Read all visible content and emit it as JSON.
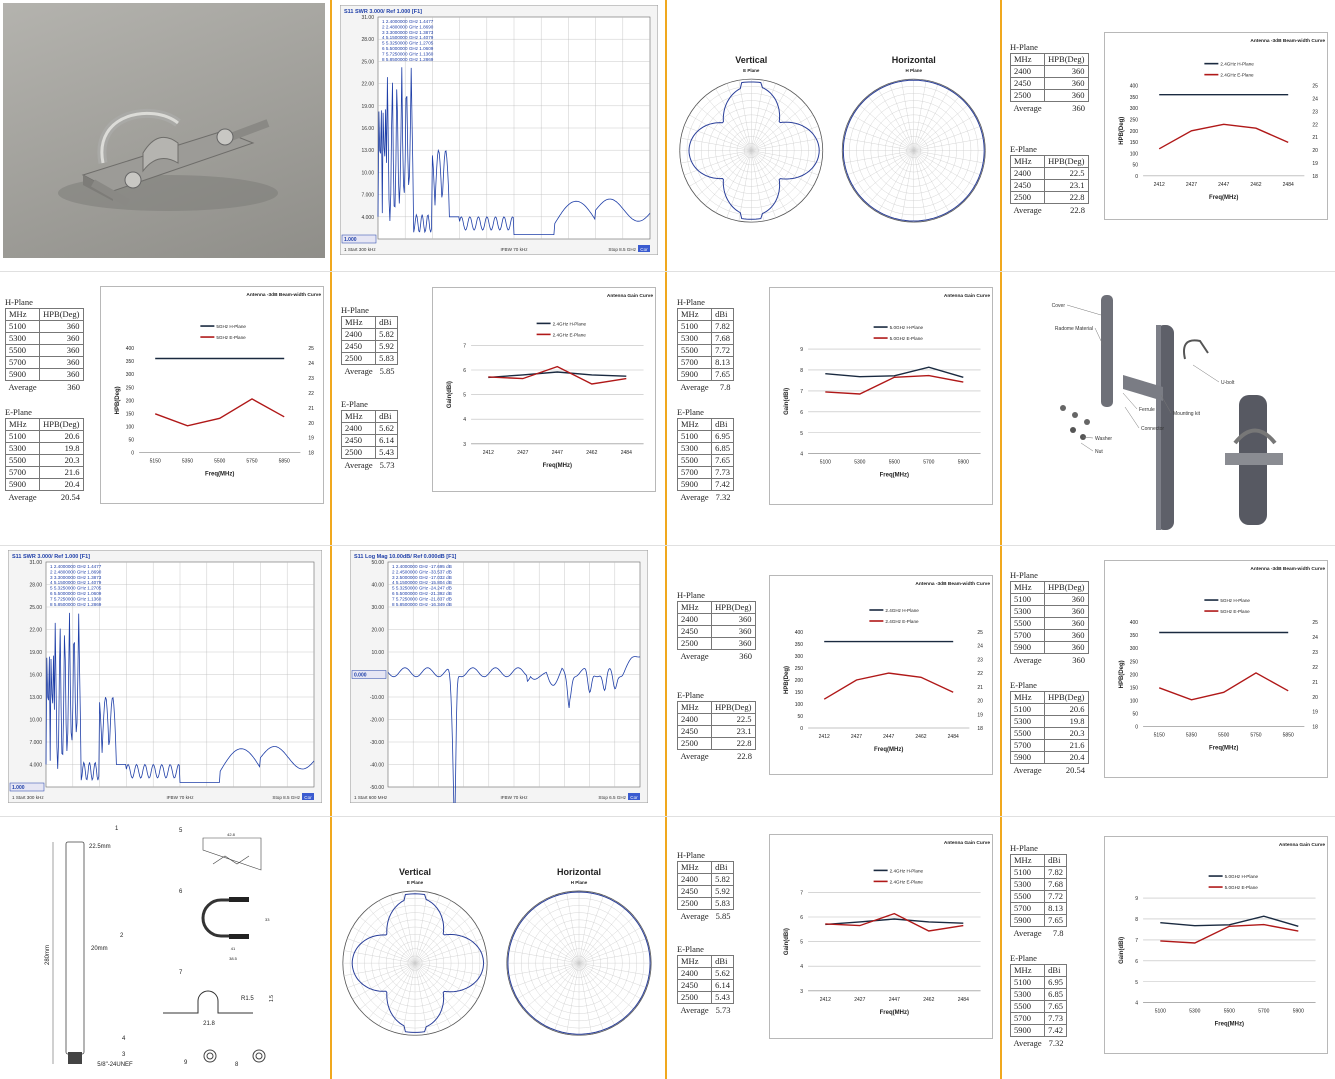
{
  "texts": {
    "vertical": "Vertical",
    "horizontal": "Horizontal",
    "eplane": "E Plane",
    "hplane": "H Plane",
    "vswr_header": "S11 SWR 3.000/ Ref 1.000 [F1]",
    "logmag_header": "S11 Log Mag 10.00dB/ Ref 0.000dB [F1]",
    "vswr_start": "1 Start 300 kHz",
    "vswr_ifbw": "IFBW 70 kHz",
    "vswr_stop": "Stop 8.5 GHz",
    "logmag_start": "1 Start 600 MHz",
    "logmag_ifbw": "IFBW 70 kHz",
    "logmag_stop": "Stop 6.5 GHz",
    "cor": "Cor",
    "vswr_ref": "1.000",
    "logmag_ref": "0.000"
  },
  "colors": {
    "separator": "#f0a81e",
    "h_plane": "#1a2a40",
    "e_plane": "#b01818",
    "trace": "#1f3fa8"
  },
  "vswr": {
    "y_ticks": [
      "31.00",
      "28.00",
      "25.00",
      "22.00",
      "19.00",
      "16.00",
      "13.00",
      "10.00",
      "7.000",
      "4.000",
      "1.000"
    ],
    "markers": [
      "1  2.4000000 GHz  1.4477",
      "2  2.4800000 GHz  1.8690",
      "3  3.3000000 GHz  1.3873",
      "4  5.1500000 GHz  1.4079",
      "5  5.3250000 GHz  1.2705",
      "6  5.5000000 GHz  1.0609",
      "7  5.7250000 GHz  1.1360",
      "8  5.8500000 GHz  1.2869"
    ]
  },
  "logmag": {
    "y_ticks": [
      "50.00",
      "40.00",
      "30.00",
      "20.00",
      "10.00",
      "0.000",
      "-10.00",
      "-20.00",
      "-30.00",
      "-40.00",
      "-50.00"
    ],
    "markers": [
      "1  2.4000000 GHz  -17.695 dB",
      "2  2.4500000 GHz  -33.537 dB",
      "3  2.5000000 GHz  -17.032 dB",
      "4  5.1500000 GHz  -15.804 dB",
      "5  5.3250000 GHz  -24.247 dB",
      "6  5.5000000 GHz  -21.392 dB",
      "7  5.7250000 GHz  -21.837 dB",
      "8  5.8500000 GHz  -16.349 dB"
    ]
  },
  "tables": {
    "bw24": {
      "h_title": "H-Plane",
      "e_title": "E-Plane",
      "col1": "MHz",
      "col2": "HPB(Deg)",
      "h_rows": [
        [
          "2400",
          "360"
        ],
        [
          "2450",
          "360"
        ],
        [
          "2500",
          "360"
        ]
      ],
      "h_avg": [
        "Average",
        "360"
      ],
      "e_rows": [
        [
          "2400",
          "22.5"
        ],
        [
          "2450",
          "23.1"
        ],
        [
          "2500",
          "22.8"
        ]
      ],
      "e_avg": [
        "Average",
        "22.8"
      ]
    },
    "bw5": {
      "h_title": "H-Plane",
      "e_title": "E-Plane",
      "col1": "MHz",
      "col2": "HPB(Deg)",
      "h_rows": [
        [
          "5100",
          "360"
        ],
        [
          "5300",
          "360"
        ],
        [
          "5500",
          "360"
        ],
        [
          "5700",
          "360"
        ],
        [
          "5900",
          "360"
        ]
      ],
      "h_avg": [
        "Average",
        "360"
      ],
      "e_rows": [
        [
          "5100",
          "20.6"
        ],
        [
          "5300",
          "19.8"
        ],
        [
          "5500",
          "20.3"
        ],
        [
          "5700",
          "21.6"
        ],
        [
          "5900",
          "20.4"
        ]
      ],
      "e_avg": [
        "Average",
        "20.54"
      ]
    },
    "gain24": {
      "h_title": "H-Plane",
      "e_title": "E-Plane",
      "col1": "MHz",
      "col2": "dBi",
      "h_rows": [
        [
          "2400",
          "5.82"
        ],
        [
          "2450",
          "5.92"
        ],
        [
          "2500",
          "5.83"
        ]
      ],
      "h_avg": [
        "Average",
        "5.85"
      ],
      "e_rows": [
        [
          "2400",
          "5.62"
        ],
        [
          "2450",
          "6.14"
        ],
        [
          "2500",
          "5.43"
        ]
      ],
      "e_avg": [
        "Average",
        "5.73"
      ]
    },
    "gain5": {
      "h_title": "H-Plane",
      "e_title": "E-Plane",
      "col1": "MHz",
      "col2": "dBi",
      "h_rows": [
        [
          "5100",
          "7.82"
        ],
        [
          "5300",
          "7.68"
        ],
        [
          "5500",
          "7.72"
        ],
        [
          "5700",
          "8.13"
        ],
        [
          "5900",
          "7.65"
        ]
      ],
      "h_avg": [
        "Average",
        "7.8"
      ],
      "e_rows": [
        [
          "5100",
          "6.95"
        ],
        [
          "5300",
          "6.85"
        ],
        [
          "5500",
          "7.65"
        ],
        [
          "5700",
          "7.73"
        ],
        [
          "5900",
          "7.42"
        ]
      ],
      "e_avg": [
        "Average",
        "7.32"
      ]
    }
  },
  "diagram": {
    "labels": [
      "Cover",
      "Radome Material",
      "U-bolt",
      "Ferrule",
      "Mounting kit",
      "Connector",
      "Washer",
      "Nut"
    ]
  },
  "drawing": {
    "callouts": [
      "1",
      "2",
      "3",
      "4",
      "5",
      "6",
      "7",
      "8",
      "9"
    ],
    "dims": [
      "22.5mm",
      "20mm",
      "280mm",
      "5/8\"-24UNEF",
      "42.8",
      "R1.5",
      "21.8",
      "1.5",
      "41",
      "38.5",
      "33"
    ]
  },
  "chart_data": [
    {
      "type": "line",
      "id": "bw24",
      "title": "Antenna -3dB Beam-width Curve",
      "xlabel": "Freq(MHz)",
      "ylabel": "HPB(Deg)",
      "categories": [
        "2412",
        "2427",
        "2447",
        "2462",
        "2484"
      ],
      "ylim": [
        0,
        400
      ],
      "yticks": [
        "0",
        "50",
        "100",
        "150",
        "200",
        "250",
        "300",
        "350",
        "400"
      ],
      "y2lim": [
        18,
        25
      ],
      "y2ticks": [
        "18",
        "19",
        "20",
        "21",
        "22",
        "23",
        "24",
        "25"
      ],
      "series": [
        {
          "name": "2.4GHz H-Plane",
          "axis": "left",
          "values": [
            360,
            360,
            360,
            360,
            360
          ]
        },
        {
          "name": "2.4GHz E-Plane",
          "axis": "right",
          "values": [
            20.1,
            21.5,
            22.0,
            21.7,
            20.6
          ]
        }
      ]
    },
    {
      "type": "line",
      "id": "bw5",
      "title": "Antenna -3dB Beam-width Curve",
      "xlabel": "Freq(MHz)",
      "ylabel": "HPB(Deg)",
      "categories": [
        "5150",
        "5350",
        "5500",
        "5750",
        "5850"
      ],
      "ylim": [
        0,
        400
      ],
      "yticks": [
        "0",
        "50",
        "100",
        "150",
        "200",
        "250",
        "300",
        "350",
        "400"
      ],
      "y2lim": [
        18,
        25
      ],
      "y2ticks": [
        "18",
        "19",
        "20",
        "21",
        "22",
        "23",
        "24",
        "25"
      ],
      "series": [
        {
          "name": "5GHz H-Plane",
          "axis": "left",
          "values": [
            360,
            360,
            360,
            360,
            360
          ]
        },
        {
          "name": "5GHz E-Plane",
          "axis": "right",
          "values": [
            20.6,
            19.8,
            20.3,
            21.6,
            20.4
          ]
        }
      ]
    },
    {
      "type": "line",
      "id": "gain24",
      "title": "Antenna Gain Curve",
      "xlabel": "Freq(MHz)",
      "ylabel": "Gain(dBi)",
      "categories": [
        "2412",
        "2427",
        "2447",
        "2462",
        "2484"
      ],
      "ylim": [
        3,
        7
      ],
      "yticks": [
        "3",
        "4",
        "5",
        "6",
        "7"
      ],
      "series": [
        {
          "name": "2.4GHz H-Plane",
          "axis": "left",
          "values": [
            5.7,
            5.8,
            5.92,
            5.8,
            5.75
          ]
        },
        {
          "name": "2.4GHz E-Plane",
          "axis": "left",
          "values": [
            5.72,
            5.65,
            6.14,
            5.43,
            5.65
          ]
        }
      ]
    },
    {
      "type": "line",
      "id": "gain5",
      "title": "Antenna Gain Curve",
      "xlabel": "Freq(MHz)",
      "ylabel": "Gain(dBi)",
      "categories": [
        "5100",
        "5300",
        "5500",
        "5700",
        "5900"
      ],
      "ylim": [
        4,
        9
      ],
      "yticks": [
        "4",
        "5",
        "6",
        "7",
        "8",
        "9"
      ],
      "series": [
        {
          "name": "5.0GHz H-Plane",
          "axis": "left",
          "values": [
            7.82,
            7.68,
            7.72,
            8.13,
            7.65
          ]
        },
        {
          "name": "5.0GHz E-Plane",
          "axis": "left",
          "values": [
            6.95,
            6.85,
            7.65,
            7.73,
            7.42
          ]
        }
      ]
    }
  ]
}
